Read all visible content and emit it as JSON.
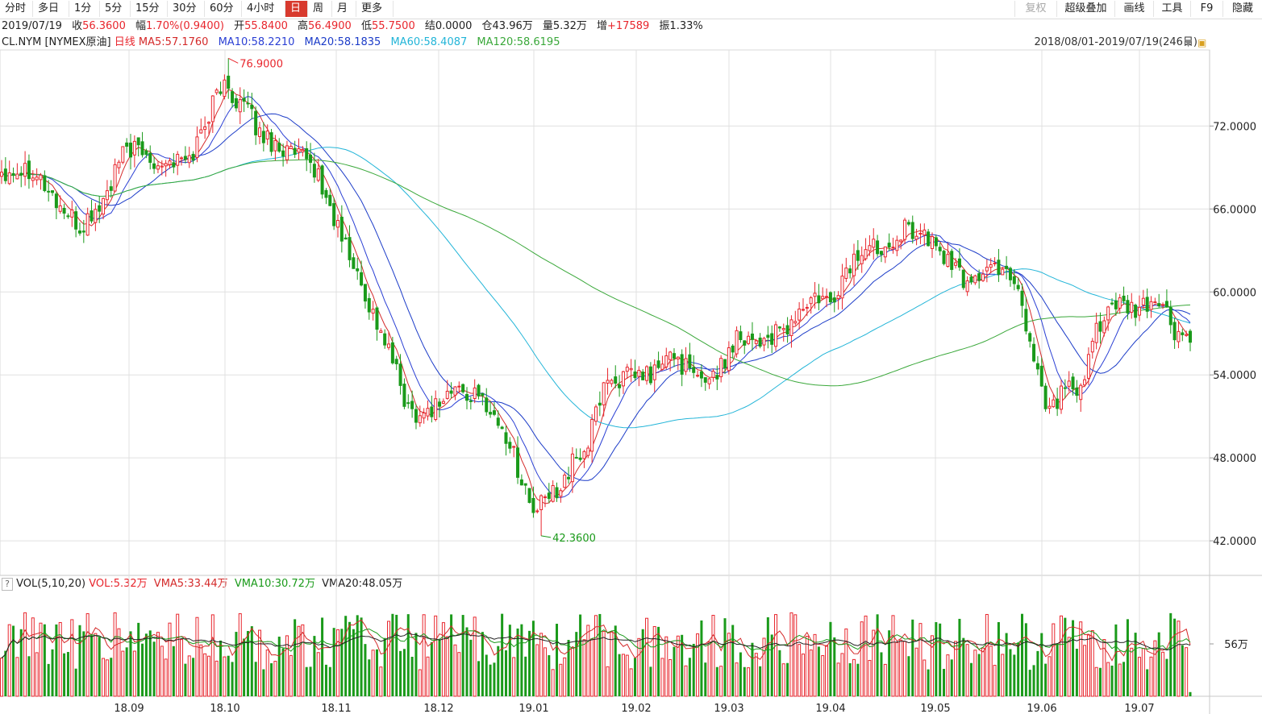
{
  "toolbar": {
    "left": [
      "分时",
      "多日",
      "1分",
      "5分",
      "15分",
      "30分",
      "60分",
      "4小时",
      "日",
      "周",
      "月",
      "更多"
    ],
    "active": "日",
    "right": [
      "复权",
      "超级叠加",
      "画线",
      "工具",
      "F9",
      "隐藏"
    ]
  },
  "quote": {
    "date": "2019/07/19",
    "close_label": "收",
    "close": "56.3600",
    "change_label": "幅",
    "change": "1.70%(0.9400)",
    "open_label": "开",
    "open": "55.8400",
    "high_label": "高",
    "high": "56.4900",
    "low_label": "低",
    "low": "55.7500",
    "settle_label": "结",
    "settle": "0.0000",
    "oi_label": "仓",
    "oi": "43.96万",
    "vol_label": "量",
    "vol": "5.32万",
    "inc_label": "增",
    "inc": "+17589",
    "amp_label": "振",
    "amp": "1.33%"
  },
  "indicators": {
    "symbol": "CL.NYM [NYMEX原油]",
    "period": "日线",
    "ma5": "MA5:57.1760",
    "ma10": "MA10:58.2210",
    "ma20": "MA20:58.1835",
    "ma60": "MA60:58.4087",
    "ma120": "MA120:58.6195"
  },
  "range_text": "2018/08/01-2019/07/19(246日)",
  "volume_info": {
    "help": "?",
    "title": "VOL(5,10,20)",
    "vol": "VOL:5.32万",
    "vma5": "VMA5:33.44万",
    "vma10": "VMA10:30.72万",
    "vma20": "VMA20:48.05万"
  },
  "colors": {
    "up": "#e8262d",
    "down": "#1a9a1a",
    "ma5": "#d42a2a",
    "ma10": "#2a3fd4",
    "ma20": "#1c3cc8",
    "ma60": "#23b5d8",
    "ma120": "#3aa83a",
    "grid": "#e0e0e0"
  },
  "chart_data": {
    "type": "candlestick",
    "x_ticks": [
      "18.09",
      "18.10",
      "18.11",
      "18.12",
      "19.01",
      "19.02",
      "19.03",
      "19.04",
      "19.05",
      "19.06",
      "19.07"
    ],
    "y_ticks": [
      "72.0000",
      "66.0000",
      "60.0000",
      "54.0000",
      "48.0000",
      "42.0000"
    ],
    "ylim": [
      39.5,
      77.5
    ],
    "annotations": {
      "max": "76.9000",
      "min": "42.3600"
    },
    "volume_tick": "56万",
    "close_anchors": [
      [
        0,
        68.8
      ],
      [
        8,
        69.0
      ],
      [
        14,
        66.5
      ],
      [
        20,
        64.5
      ],
      [
        26,
        66.5
      ],
      [
        32,
        70.5
      ],
      [
        40,
        69.5
      ],
      [
        48,
        69.5
      ],
      [
        56,
        75.0
      ],
      [
        62,
        73.5
      ],
      [
        66,
        71.5
      ],
      [
        74,
        70.0
      ],
      [
        80,
        69.0
      ],
      [
        84,
        66.0
      ],
      [
        92,
        60.5
      ],
      [
        100,
        55.0
      ],
      [
        104,
        51.5
      ],
      [
        108,
        51.2
      ],
      [
        116,
        53.0
      ],
      [
        124,
        52.0
      ],
      [
        130,
        49.0
      ],
      [
        136,
        44.0
      ],
      [
        142,
        45.8
      ],
      [
        146,
        47.5
      ],
      [
        150,
        49.0
      ],
      [
        154,
        53.5
      ],
      [
        160,
        53.8
      ],
      [
        166,
        54.0
      ],
      [
        172,
        55.5
      ],
      [
        178,
        53.5
      ],
      [
        184,
        54.5
      ],
      [
        188,
        57.0
      ],
      [
        194,
        56.5
      ],
      [
        200,
        57.0
      ],
      [
        204,
        58.5
      ],
      [
        208,
        59.5
      ],
      [
        212,
        59.0
      ],
      [
        216,
        61.5
      ],
      [
        220,
        63.0
      ],
      [
        226,
        63.5
      ],
      [
        230,
        64.5
      ],
      [
        234,
        64.5
      ],
      [
        240,
        63.0
      ],
      [
        246,
        60.8
      ],
      [
        252,
        61.5
      ],
      [
        256,
        62.0
      ],
      [
        260,
        60.5
      ],
      [
        262,
        57.5
      ],
      [
        266,
        53.2
      ],
      [
        268,
        51.5
      ],
      [
        272,
        53.0
      ],
      [
        276,
        52.5
      ],
      [
        280,
        57.5
      ],
      [
        284,
        59.0
      ],
      [
        290,
        58.5
      ],
      [
        296,
        59.5
      ],
      [
        300,
        57.0
      ],
      [
        304,
        56.4
      ]
    ],
    "high": 76.9,
    "low": 42.36,
    "last_close": 56.36
  }
}
